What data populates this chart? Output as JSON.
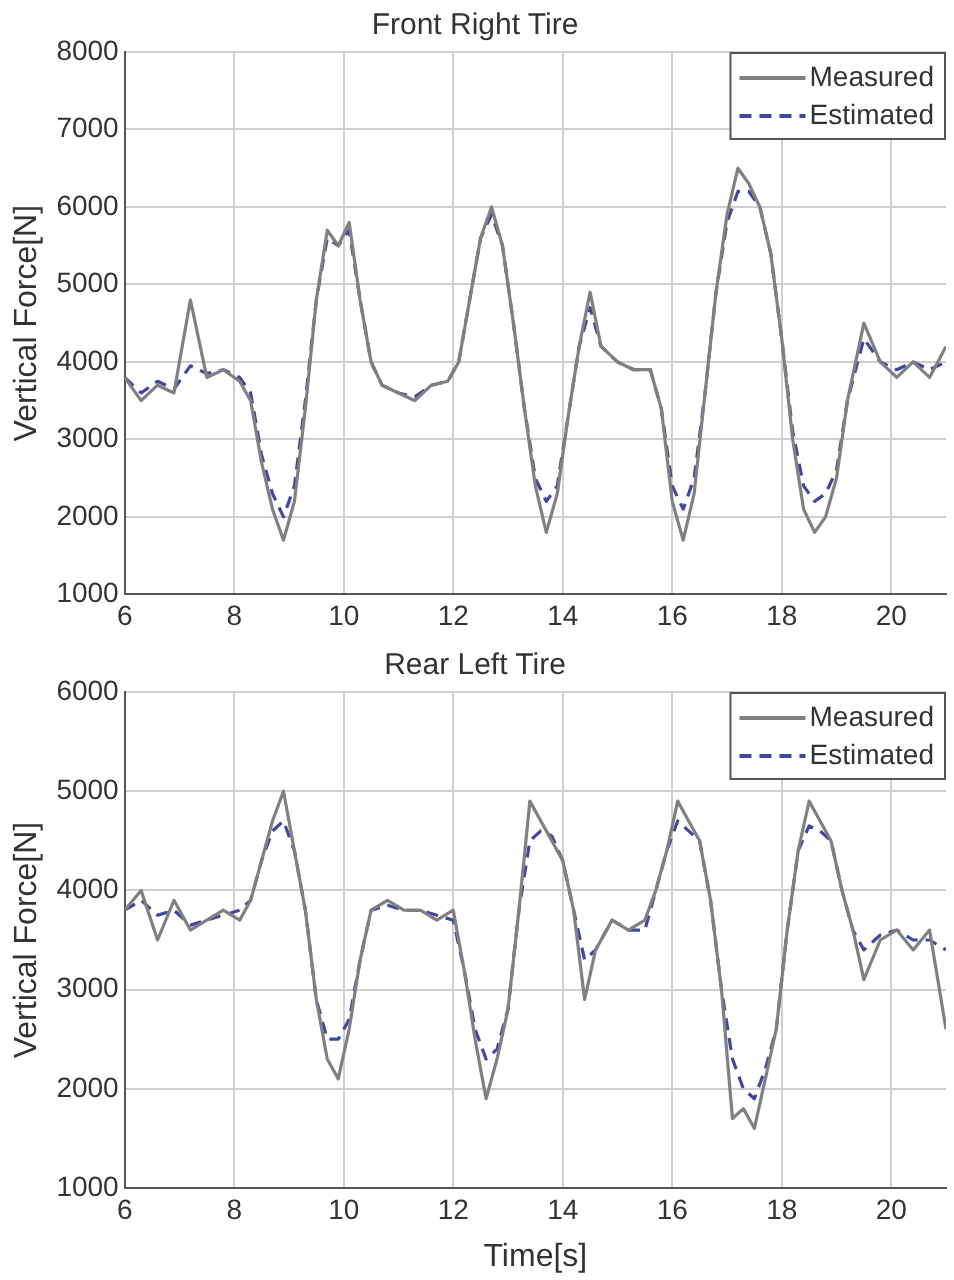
{
  "chart_data": [
    {
      "type": "line",
      "title": "Front Right Tire",
      "ylabel": "Vertical Force[N]",
      "xlim": [
        6,
        21
      ],
      "xticks": [
        6,
        8,
        10,
        12,
        14,
        16,
        18,
        20
      ],
      "ylim": [
        1000,
        8000
      ],
      "yticks": [
        1000,
        2000,
        3000,
        4000,
        5000,
        6000,
        7000,
        8000
      ],
      "grid": true,
      "legend": "top right",
      "marker": "none",
      "x": [
        6.0,
        6.3,
        6.6,
        6.9,
        7.2,
        7.5,
        7.8,
        8.1,
        8.3,
        8.5,
        8.7,
        8.9,
        9.1,
        9.3,
        9.5,
        9.7,
        9.9,
        10.1,
        10.3,
        10.5,
        10.7,
        11.0,
        11.3,
        11.6,
        11.9,
        12.1,
        12.3,
        12.5,
        12.7,
        12.9,
        13.1,
        13.3,
        13.5,
        13.7,
        13.9,
        14.1,
        14.3,
        14.5,
        14.7,
        15.0,
        15.3,
        15.6,
        15.8,
        16.0,
        16.2,
        16.4,
        16.6,
        16.8,
        17.0,
        17.2,
        17.4,
        17.6,
        17.8,
        18.0,
        18.2,
        18.4,
        18.6,
        18.8,
        19.0,
        19.2,
        19.5,
        19.8,
        20.1,
        20.4,
        20.7,
        21.0
      ],
      "series": [
        {
          "name": "Measured",
          "color": "#808080",
          "line_style": "solid",
          "values": [
            3800,
            3500,
            3700,
            3600,
            4800,
            3800,
            3900,
            3750,
            3500,
            2700,
            2100,
            1700,
            2200,
            3400,
            4800,
            5700,
            5500,
            5800,
            4800,
            4000,
            3700,
            3600,
            3500,
            3700,
            3750,
            4000,
            4800,
            5600,
            6000,
            5500,
            4500,
            3400,
            2400,
            1800,
            2300,
            3300,
            4200,
            4900,
            4200,
            4000,
            3900,
            3900,
            3400,
            2200,
            1700,
            2300,
            3600,
            4900,
            5900,
            6500,
            6300,
            6000,
            5400,
            4300,
            3000,
            2100,
            1800,
            2000,
            2500,
            3500,
            4500,
            4000,
            3800,
            4000,
            3800,
            4200
          ]
        },
        {
          "name": "Estimated",
          "color": "#3f48a0",
          "line_style": "dashed",
          "values": [
            3800,
            3600,
            3750,
            3650,
            3950,
            3850,
            3900,
            3800,
            3600,
            2800,
            2300,
            2000,
            2400,
            3500,
            4800,
            5600,
            5500,
            5700,
            4800,
            4000,
            3700,
            3600,
            3550,
            3700,
            3750,
            4000,
            4800,
            5600,
            5900,
            5500,
            4500,
            3400,
            2500,
            2200,
            2400,
            3300,
            4200,
            4700,
            4200,
            4000,
            3900,
            3900,
            3400,
            2400,
            2100,
            2500,
            3600,
            4900,
            5800,
            6200,
            6200,
            6000,
            5400,
            4300,
            3100,
            2400,
            2200,
            2300,
            2600,
            3500,
            4300,
            4000,
            3900,
            4000,
            3900,
            4000
          ]
        }
      ]
    },
    {
      "type": "line",
      "title": "Rear Left Tire",
      "xlabel": "Time[s]",
      "ylabel": "Vertical Force[N]",
      "xlim": [
        6,
        21
      ],
      "xticks": [
        6,
        8,
        10,
        12,
        14,
        16,
        18,
        20
      ],
      "ylim": [
        1000,
        6000
      ],
      "yticks": [
        1000,
        2000,
        3000,
        4000,
        5000,
        6000
      ],
      "grid": true,
      "legend": "top right",
      "marker": "none",
      "x": [
        6.0,
        6.3,
        6.6,
        6.9,
        7.2,
        7.5,
        7.8,
        8.1,
        8.3,
        8.5,
        8.7,
        8.9,
        9.1,
        9.3,
        9.5,
        9.7,
        9.9,
        10.1,
        10.3,
        10.5,
        10.8,
        11.1,
        11.4,
        11.7,
        12.0,
        12.2,
        12.4,
        12.6,
        12.8,
        13.0,
        13.2,
        13.4,
        13.6,
        13.8,
        14.0,
        14.2,
        14.4,
        14.6,
        14.9,
        15.2,
        15.5,
        15.7,
        15.9,
        16.1,
        16.3,
        16.5,
        16.7,
        16.9,
        17.1,
        17.3,
        17.5,
        17.7,
        17.9,
        18.1,
        18.3,
        18.5,
        18.7,
        18.9,
        19.1,
        19.3,
        19.5,
        19.8,
        20.1,
        20.4,
        20.7,
        21.0
      ],
      "series": [
        {
          "name": "Measured",
          "color": "#808080",
          "line_style": "solid",
          "values": [
            3800,
            4000,
            3500,
            3900,
            3600,
            3700,
            3800,
            3700,
            3900,
            4300,
            4700,
            5000,
            4400,
            3800,
            2900,
            2300,
            2100,
            2600,
            3300,
            3800,
            3900,
            3800,
            3800,
            3700,
            3800,
            3200,
            2500,
            1900,
            2300,
            2800,
            3800,
            4900,
            4700,
            4500,
            4300,
            3800,
            2900,
            3400,
            3700,
            3600,
            3700,
            4000,
            4400,
            4900,
            4700,
            4500,
            3900,
            3000,
            1700,
            1800,
            1600,
            2100,
            2600,
            3600,
            4400,
            4900,
            4700,
            4500,
            4000,
            3600,
            3100,
            3500,
            3600,
            3400,
            3600,
            2600
          ]
        },
        {
          "name": "Estimated",
          "color": "#3f48a0",
          "line_style": "dashed",
          "values": [
            3800,
            3900,
            3750,
            3800,
            3650,
            3700,
            3750,
            3800,
            3900,
            4300,
            4600,
            4700,
            4400,
            3800,
            2900,
            2500,
            2500,
            2700,
            3300,
            3800,
            3850,
            3800,
            3800,
            3750,
            3700,
            3200,
            2600,
            2300,
            2400,
            2800,
            3800,
            4500,
            4600,
            4550,
            4300,
            3800,
            3300,
            3400,
            3700,
            3600,
            3600,
            4000,
            4400,
            4700,
            4600,
            4500,
            3900,
            3000,
            2300,
            2000,
            1900,
            2200,
            2600,
            3600,
            4400,
            4650,
            4600,
            4500,
            4000,
            3600,
            3400,
            3550,
            3600,
            3500,
            3500,
            3400
          ]
        }
      ]
    }
  ]
}
